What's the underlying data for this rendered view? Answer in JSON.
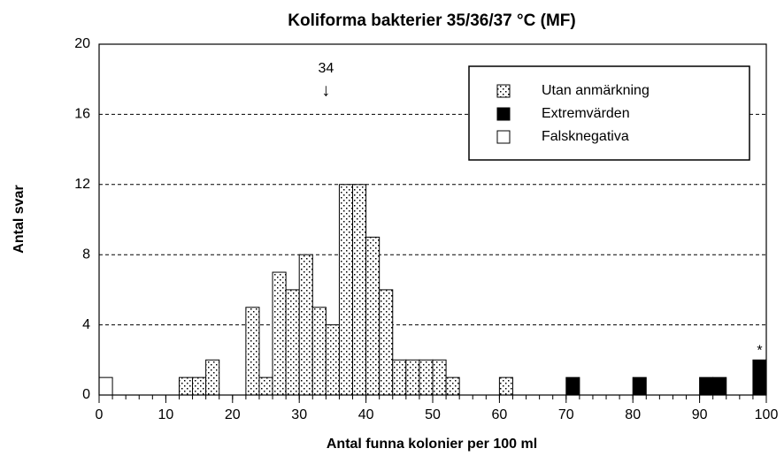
{
  "chart_data": {
    "type": "histogram",
    "title": "Koliforma bakterier 35/36/37 °C (MF)",
    "x_label": "Antal funna kolonier per 100 ml",
    "y_label": "Antal svar",
    "bins": [
      0,
      2,
      4,
      6,
      8,
      10,
      12,
      14,
      16,
      18,
      20,
      22,
      24,
      26,
      28,
      30,
      32,
      34,
      36,
      38,
      40,
      42,
      44,
      46,
      48,
      50,
      52,
      54,
      56,
      58,
      60,
      62,
      64,
      66,
      68,
      70,
      72,
      74,
      76,
      78,
      80,
      82,
      84,
      86,
      88,
      90,
      92,
      94,
      96,
      98,
      100
    ],
    "series": [
      {
        "name": "Utan anmärkning",
        "color": "#ffffff",
        "pattern": "dots",
        "values": [
          0,
          0,
          0,
          0,
          0,
          0,
          1,
          1,
          2,
          0,
          0,
          5,
          1,
          7,
          6,
          8,
          5,
          4,
          12,
          12,
          9,
          6,
          2,
          2,
          2,
          2,
          1,
          0,
          0,
          0,
          1,
          0,
          0,
          0,
          0,
          0,
          0,
          0,
          0,
          0,
          0,
          0,
          0,
          0,
          0,
          0,
          0,
          0,
          0,
          0
        ]
      },
      {
        "name": "Extremvärden",
        "color": "#000000",
        "values": [
          0,
          0,
          0,
          0,
          0,
          0,
          0,
          0,
          0,
          0,
          0,
          0,
          0,
          0,
          0,
          0,
          0,
          0,
          0,
          0,
          0,
          0,
          0,
          0,
          0,
          0,
          0,
          0,
          0,
          0,
          0,
          0,
          0,
          0,
          0,
          1,
          0,
          0,
          0,
          0,
          1,
          0,
          0,
          0,
          0,
          1,
          1,
          0,
          0,
          2
        ]
      },
      {
        "name": "Falsknegativa",
        "color": "#ffffff",
        "values": [
          1,
          0,
          0,
          0,
          0,
          0,
          0,
          0,
          0,
          0,
          0,
          0,
          0,
          0,
          0,
          0,
          0,
          0,
          0,
          0,
          0,
          0,
          0,
          0,
          0,
          0,
          0,
          0,
          0,
          0,
          0,
          0,
          0,
          0,
          0,
          0,
          0,
          0,
          0,
          0,
          0,
          0,
          0,
          0,
          0,
          0,
          0,
          0,
          0,
          0
        ]
      }
    ],
    "annotations": [
      {
        "value": 34,
        "arrow": "↓"
      },
      {
        "text": "*"
      }
    ],
    "xlim": [
      0,
      100
    ],
    "xticks": [
      0,
      10,
      20,
      30,
      40,
      50,
      60,
      70,
      80,
      90,
      100
    ],
    "ylim": [
      0,
      20
    ],
    "yticks": [
      0,
      4,
      8,
      12,
      16,
      20
    ],
    "grid": true,
    "legend": "upper right"
  }
}
